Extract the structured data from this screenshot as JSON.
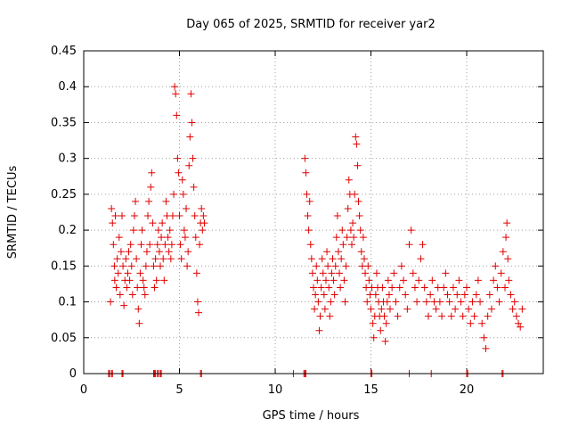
{
  "chart_data": {
    "type": "scatter",
    "title": "Day 065 of 2025, SRMTID for receiver yar2",
    "xlabel": "GPS time / hours",
    "ylabel": "SRMTID / TECUs",
    "xlim": [
      0,
      24
    ],
    "ylim": [
      0,
      0.45
    ],
    "xticks": [
      0,
      5,
      10,
      15,
      20
    ],
    "yticks": [
      0,
      0.05,
      0.1,
      0.15,
      0.2,
      0.25,
      0.3,
      0.35,
      0.4,
      0.45
    ],
    "xtick_labels": [
      "0",
      "5",
      "10",
      "15",
      "20"
    ],
    "ytick_labels": [
      "0",
      "0.05",
      "0.1",
      "0.15",
      "0.2",
      "0.25",
      "0.3",
      "0.35",
      "0.4",
      "0.45"
    ],
    "grid": true,
    "marker": "+",
    "series": [
      {
        "name": "SRMTID",
        "color": "#e00000",
        "points": [
          [
            1.4,
            0.1
          ],
          [
            1.45,
            0.23
          ],
          [
            1.5,
            0.21
          ],
          [
            1.55,
            0.18
          ],
          [
            1.6,
            0.15
          ],
          [
            1.62,
            0.13
          ],
          [
            1.65,
            0.22
          ],
          [
            1.7,
            0.12
          ],
          [
            1.75,
            0.16
          ],
          [
            1.8,
            0.14
          ],
          [
            1.85,
            0.19
          ],
          [
            1.9,
            0.11
          ],
          [
            1.95,
            0.17
          ],
          [
            2.0,
            0.22
          ],
          [
            2.05,
            0.15
          ],
          [
            2.1,
            0.095
          ],
          [
            2.15,
            0.13
          ],
          [
            2.2,
            0.16
          ],
          [
            2.25,
            0.12
          ],
          [
            2.3,
            0.14
          ],
          [
            2.35,
            0.17
          ],
          [
            2.4,
            0.13
          ],
          [
            2.45,
            0.18
          ],
          [
            2.5,
            0.15
          ],
          [
            2.55,
            0.11
          ],
          [
            2.6,
            0.2
          ],
          [
            2.65,
            0.22
          ],
          [
            2.7,
            0.24
          ],
          [
            2.75,
            0.16
          ],
          [
            2.8,
            0.12
          ],
          [
            2.85,
            0.09
          ],
          [
            2.9,
            0.07
          ],
          [
            2.95,
            0.14
          ],
          [
            3.0,
            0.18
          ],
          [
            3.05,
            0.2
          ],
          [
            3.1,
            0.13
          ],
          [
            3.15,
            0.12
          ],
          [
            3.2,
            0.11
          ],
          [
            3.25,
            0.15
          ],
          [
            3.3,
            0.17
          ],
          [
            3.35,
            0.22
          ],
          [
            3.4,
            0.24
          ],
          [
            3.45,
            0.18
          ],
          [
            3.5,
            0.26
          ],
          [
            3.55,
            0.28
          ],
          [
            3.6,
            0.21
          ],
          [
            3.65,
            0.15
          ],
          [
            3.7,
            0.12
          ],
          [
            3.75,
            0.16
          ],
          [
            3.8,
            0.13
          ],
          [
            3.85,
            0.18
          ],
          [
            3.9,
            0.2
          ],
          [
            3.95,
            0.17
          ],
          [
            4.0,
            0.15
          ],
          [
            4.05,
            0.19
          ],
          [
            4.1,
            0.21
          ],
          [
            4.15,
            0.16
          ],
          [
            4.2,
            0.13
          ],
          [
            4.25,
            0.18
          ],
          [
            4.3,
            0.24
          ],
          [
            4.35,
            0.22
          ],
          [
            4.4,
            0.19
          ],
          [
            4.45,
            0.17
          ],
          [
            4.5,
            0.2
          ],
          [
            4.55,
            0.16
          ],
          [
            4.6,
            0.18
          ],
          [
            4.65,
            0.22
          ],
          [
            4.7,
            0.25
          ],
          [
            4.75,
            0.4
          ],
          [
            4.8,
            0.39
          ],
          [
            4.85,
            0.36
          ],
          [
            4.9,
            0.3
          ],
          [
            4.95,
            0.28
          ],
          [
            5.0,
            0.22
          ],
          [
            5.05,
            0.18
          ],
          [
            5.1,
            0.16
          ],
          [
            5.15,
            0.27
          ],
          [
            5.2,
            0.25
          ],
          [
            5.25,
            0.2
          ],
          [
            5.3,
            0.19
          ],
          [
            5.35,
            0.23
          ],
          [
            5.4,
            0.15
          ],
          [
            5.45,
            0.17
          ],
          [
            5.5,
            0.29
          ],
          [
            5.55,
            0.33
          ],
          [
            5.6,
            0.39
          ],
          [
            5.65,
            0.35
          ],
          [
            5.7,
            0.3
          ],
          [
            5.75,
            0.26
          ],
          [
            5.8,
            0.22
          ],
          [
            5.85,
            0.19
          ],
          [
            5.9,
            0.14
          ],
          [
            5.95,
            0.1
          ],
          [
            6.0,
            0.085
          ],
          [
            6.05,
            0.18
          ],
          [
            6.1,
            0.21
          ],
          [
            6.15,
            0.23
          ],
          [
            6.2,
            0.2
          ],
          [
            6.25,
            0.22
          ],
          [
            6.3,
            0.21
          ],
          [
            11.55,
            0.3
          ],
          [
            11.6,
            0.28
          ],
          [
            11.65,
            0.25
          ],
          [
            11.7,
            0.22
          ],
          [
            11.75,
            0.2
          ],
          [
            11.8,
            0.24
          ],
          [
            11.85,
            0.18
          ],
          [
            11.9,
            0.16
          ],
          [
            11.95,
            0.14
          ],
          [
            12.0,
            0.12
          ],
          [
            12.05,
            0.09
          ],
          [
            12.1,
            0.11
          ],
          [
            12.15,
            0.15
          ],
          [
            12.2,
            0.13
          ],
          [
            12.25,
            0.1
          ],
          [
            12.3,
            0.06
          ],
          [
            12.35,
            0.08
          ],
          [
            12.4,
            0.12
          ],
          [
            12.45,
            0.16
          ],
          [
            12.5,
            0.14
          ],
          [
            12.55,
            0.11
          ],
          [
            12.6,
            0.09
          ],
          [
            12.65,
            0.13
          ],
          [
            12.7,
            0.17
          ],
          [
            12.75,
            0.15
          ],
          [
            12.8,
            0.12
          ],
          [
            12.85,
            0.08
          ],
          [
            12.9,
            0.1
          ],
          [
            12.95,
            0.14
          ],
          [
            13.0,
            0.16
          ],
          [
            13.05,
            0.13
          ],
          [
            13.1,
            0.11
          ],
          [
            13.15,
            0.15
          ],
          [
            13.2,
            0.19
          ],
          [
            13.25,
            0.22
          ],
          [
            13.3,
            0.17
          ],
          [
            13.35,
            0.14
          ],
          [
            13.4,
            0.12
          ],
          [
            13.45,
            0.16
          ],
          [
            13.5,
            0.2
          ],
          [
            13.55,
            0.18
          ],
          [
            13.6,
            0.13
          ],
          [
            13.65,
            0.1
          ],
          [
            13.7,
            0.15
          ],
          [
            13.75,
            0.19
          ],
          [
            13.8,
            0.23
          ],
          [
            13.85,
            0.27
          ],
          [
            13.9,
            0.25
          ],
          [
            13.95,
            0.2
          ],
          [
            14.0,
            0.18
          ],
          [
            14.05,
            0.21
          ],
          [
            14.1,
            0.19
          ],
          [
            14.15,
            0.25
          ],
          [
            14.2,
            0.33
          ],
          [
            14.25,
            0.32
          ],
          [
            14.3,
            0.29
          ],
          [
            14.35,
            0.24
          ],
          [
            14.4,
            0.22
          ],
          [
            14.45,
            0.2
          ],
          [
            14.5,
            0.17
          ],
          [
            14.55,
            0.15
          ],
          [
            14.6,
            0.19
          ],
          [
            14.65,
            0.16
          ],
          [
            14.7,
            0.14
          ],
          [
            14.75,
            0.12
          ],
          [
            14.8,
            0.1
          ],
          [
            14.85,
            0.15
          ],
          [
            14.9,
            0.13
          ],
          [
            14.95,
            0.11
          ],
          [
            15.0,
            0.09
          ],
          [
            15.05,
            0.12
          ],
          [
            15.1,
            0.07
          ],
          [
            15.15,
            0.05
          ],
          [
            15.2,
            0.08
          ],
          [
            15.25,
            0.11
          ],
          [
            15.3,
            0.14
          ],
          [
            15.35,
            0.12
          ],
          [
            15.4,
            0.1
          ],
          [
            15.45,
            0.08
          ],
          [
            15.5,
            0.06
          ],
          [
            15.55,
            0.09
          ],
          [
            15.6,
            0.12
          ],
          [
            15.65,
            0.1
          ],
          [
            15.7,
            0.08
          ],
          [
            15.75,
            0.045
          ],
          [
            15.8,
            0.07
          ],
          [
            15.85,
            0.1
          ],
          [
            15.9,
            0.13
          ],
          [
            15.95,
            0.11
          ],
          [
            16.0,
            0.09
          ],
          [
            16.1,
            0.12
          ],
          [
            16.2,
            0.14
          ],
          [
            16.3,
            0.1
          ],
          [
            16.4,
            0.08
          ],
          [
            16.5,
            0.12
          ],
          [
            16.6,
            0.15
          ],
          [
            16.7,
            0.13
          ],
          [
            16.8,
            0.11
          ],
          [
            16.9,
            0.09
          ],
          [
            17.0,
            0.18
          ],
          [
            17.1,
            0.2
          ],
          [
            17.2,
            0.14
          ],
          [
            17.3,
            0.12
          ],
          [
            17.4,
            0.1
          ],
          [
            17.5,
            0.13
          ],
          [
            17.6,
            0.16
          ],
          [
            17.7,
            0.18
          ],
          [
            17.8,
            0.12
          ],
          [
            17.9,
            0.1
          ],
          [
            18.0,
            0.08
          ],
          [
            18.1,
            0.11
          ],
          [
            18.2,
            0.13
          ],
          [
            18.3,
            0.1
          ],
          [
            18.4,
            0.09
          ],
          [
            18.5,
            0.12
          ],
          [
            18.6,
            0.1
          ],
          [
            18.7,
            0.08
          ],
          [
            18.8,
            0.12
          ],
          [
            18.9,
            0.14
          ],
          [
            19.0,
            0.11
          ],
          [
            19.1,
            0.1
          ],
          [
            19.2,
            0.08
          ],
          [
            19.3,
            0.12
          ],
          [
            19.4,
            0.09
          ],
          [
            19.5,
            0.11
          ],
          [
            19.6,
            0.13
          ],
          [
            19.7,
            0.1
          ],
          [
            19.8,
            0.08
          ],
          [
            19.9,
            0.11
          ],
          [
            20.0,
            0.12
          ],
          [
            20.1,
            0.09
          ],
          [
            20.2,
            0.07
          ],
          [
            20.3,
            0.1
          ],
          [
            20.4,
            0.08
          ],
          [
            20.5,
            0.11
          ],
          [
            20.6,
            0.13
          ],
          [
            20.7,
            0.1
          ],
          [
            20.8,
            0.07
          ],
          [
            20.9,
            0.05
          ],
          [
            21.0,
            0.035
          ],
          [
            21.1,
            0.08
          ],
          [
            21.2,
            0.11
          ],
          [
            21.3,
            0.09
          ],
          [
            21.4,
            0.13
          ],
          [
            21.5,
            0.15
          ],
          [
            21.6,
            0.12
          ],
          [
            21.7,
            0.1
          ],
          [
            21.8,
            0.14
          ],
          [
            21.9,
            0.17
          ],
          [
            22.0,
            0.12
          ],
          [
            22.05,
            0.19
          ],
          [
            22.1,
            0.21
          ],
          [
            22.15,
            0.16
          ],
          [
            22.2,
            0.13
          ],
          [
            22.3,
            0.11
          ],
          [
            22.4,
            0.09
          ],
          [
            22.5,
            0.1
          ],
          [
            22.6,
            0.08
          ],
          [
            22.7,
            0.07
          ],
          [
            22.8,
            0.065
          ],
          [
            22.9,
            0.09
          ]
        ]
      }
    ],
    "baseline_points": {
      "y": 0,
      "x": [
        1.3,
        1.35,
        1.45,
        1.5,
        2.0,
        2.05,
        3.65,
        3.7,
        3.75,
        3.85,
        3.9,
        4.0,
        4.05,
        6.1,
        6.15,
        10.95,
        11.5,
        11.55,
        11.6,
        15.0,
        15.05,
        17.0,
        18.15,
        20.0,
        20.05,
        21.85,
        21.9
      ]
    }
  }
}
